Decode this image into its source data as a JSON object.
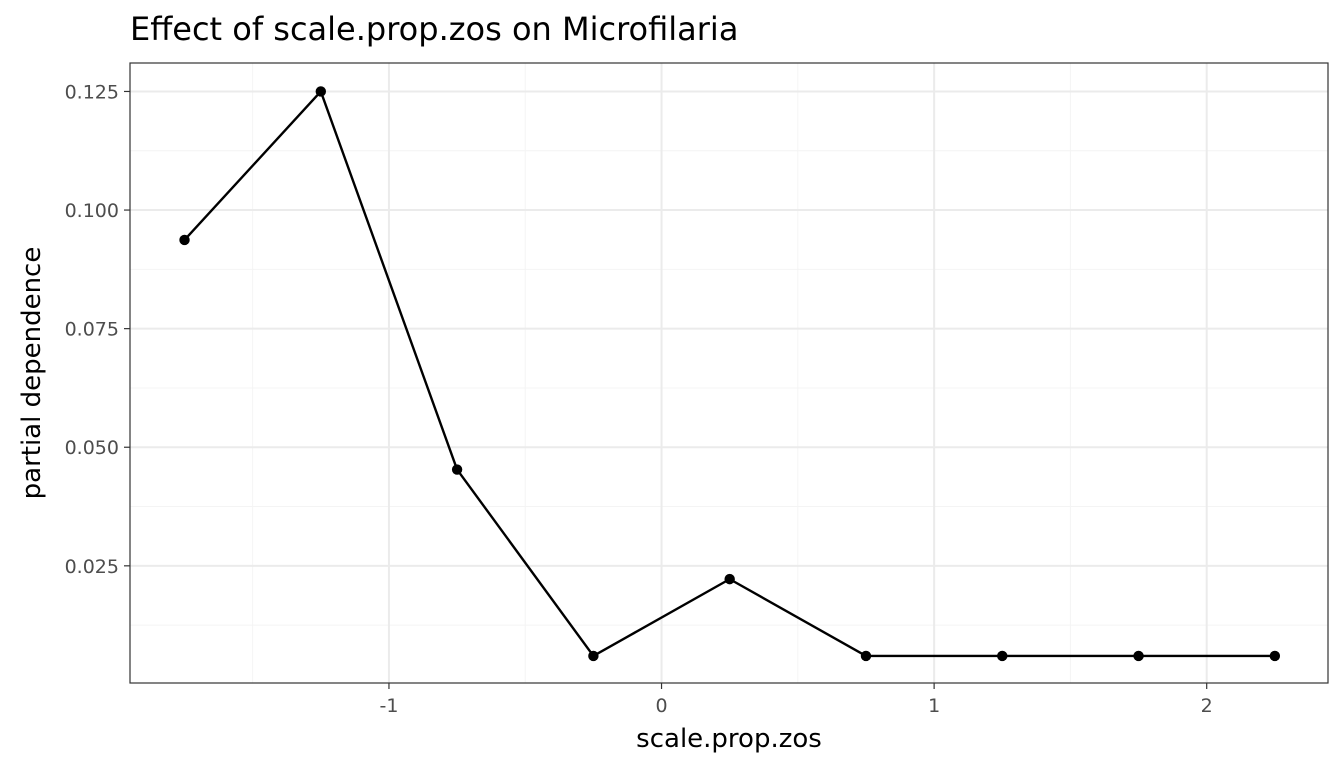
{
  "chart_data": {
    "type": "line",
    "title": "Effect of scale.prop.zos on Microfilaria",
    "xlabel": "scale.prop.zos",
    "ylabel": "partial dependence",
    "x": [
      -1.75,
      -1.25,
      -0.75,
      -0.25,
      0.25,
      0.75,
      1.25,
      1.75,
      2.25
    ],
    "series": [
      {
        "values": [
          0.0937,
          0.125,
          0.0453,
          0.006,
          0.0222,
          0.006,
          0.006,
          0.006,
          0.006
        ]
      }
    ],
    "xlim": [
      -1.95,
      2.445
    ],
    "ylim": [
      0.0003,
      0.131
    ],
    "x_ticks": [
      -1,
      0,
      1,
      2
    ],
    "x_tick_labels": [
      "-1",
      "0",
      "1",
      "2"
    ],
    "y_ticks": [
      0.025,
      0.05,
      0.075,
      0.1,
      0.125
    ],
    "y_tick_labels": [
      "0.025",
      "0.050",
      "0.075",
      "0.100",
      "0.125"
    ],
    "x_minor_ticks": [
      -1.5,
      -0.5,
      0.5,
      1.5
    ],
    "y_minor_ticks": [
      0.0125,
      0.0375,
      0.0625,
      0.0875,
      0.1125
    ],
    "grid": true,
    "legend": "none",
    "colors": {
      "line": "#000000",
      "point": "#000000",
      "grid_major": "#ebebeb",
      "grid_minor": "#f4f4f4",
      "panel_border": "#333333"
    }
  }
}
